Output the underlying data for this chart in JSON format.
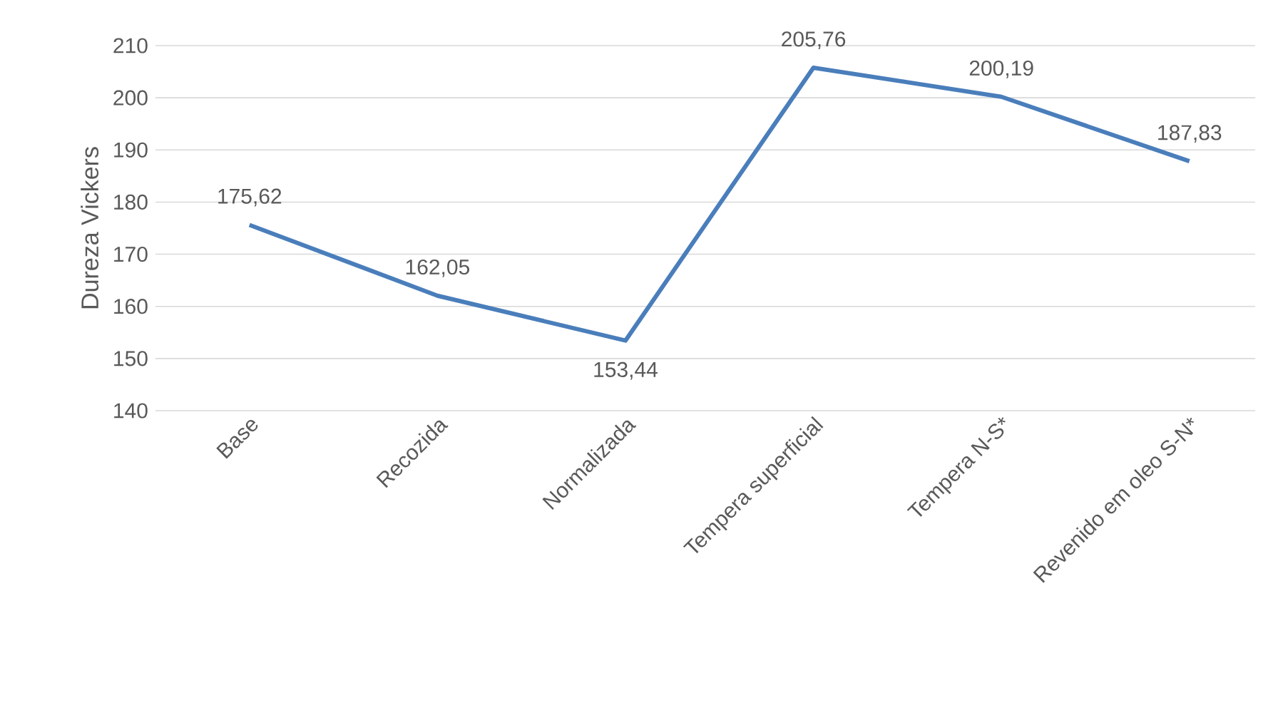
{
  "chart_data": {
    "type": "line",
    "ylabel": "Dureza Vickers",
    "categories": [
      "Base",
      "Recozida",
      "Normalizada",
      "Tempera superficial",
      "Tempera N-S*",
      "Revenido em oleo S-N*"
    ],
    "values": [
      175.62,
      162.05,
      153.44,
      205.76,
      200.19,
      187.83
    ],
    "value_labels": [
      "175,62",
      "162,05",
      "153,44",
      "205,76",
      "200,19",
      "187,83"
    ],
    "color": "#4a7ebb",
    "ylim": [
      140,
      210
    ],
    "yticks": [
      140,
      150,
      160,
      170,
      180,
      190,
      200,
      210
    ],
    "grid": "y",
    "marker": "none",
    "line_style": "solid"
  }
}
